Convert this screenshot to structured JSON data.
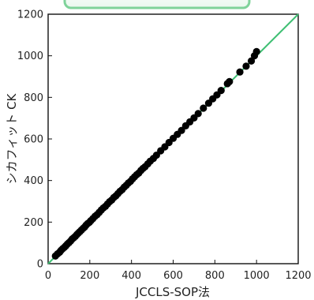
{
  "chart_data": {
    "type": "scatter",
    "title": "",
    "xlabel": "JCCLS-SOP法",
    "ylabel": "シカフィット CK",
    "xlim": [
      0,
      1200
    ],
    "ylim": [
      0,
      1200
    ],
    "x_ticks": [
      "0",
      "200",
      "400",
      "600",
      "800",
      "1000",
      "1200"
    ],
    "y_ticks": [
      "0",
      "200",
      "400",
      "600",
      "800",
      "1000",
      "1200"
    ],
    "grid": false,
    "legend": "none",
    "colors": {
      "points": "#000000",
      "reference_line": "#3fbf73",
      "top_decoration": "#7fd39a"
    },
    "reference_line": {
      "x": [
        0,
        1200
      ],
      "y": [
        0,
        1200
      ]
    },
    "series": [
      {
        "x": [
          35,
          45,
          55,
          62,
          70,
          78,
          85,
          92,
          100,
          108,
          115,
          122,
          130,
          138,
          145,
          152,
          160,
          168,
          175,
          182,
          190,
          198,
          205,
          215,
          225,
          235,
          245,
          255,
          265,
          275,
          285,
          295,
          305,
          315,
          325,
          335,
          345,
          355,
          365,
          375,
          385,
          395,
          405,
          415,
          425,
          435,
          445,
          455,
          465,
          478,
          490,
          505,
          520,
          540,
          560,
          580,
          600,
          620,
          640,
          660,
          680,
          700,
          720,
          745,
          770,
          790,
          810,
          830,
          860,
          870,
          920,
          950,
          975,
          990,
          1000
        ],
        "y": [
          37,
          47,
          55,
          64,
          72,
          79,
          86,
          94,
          101,
          109,
          118,
          124,
          131,
          140,
          147,
          154,
          162,
          170,
          176,
          185,
          193,
          199,
          207,
          217,
          228,
          236,
          247,
          258,
          268,
          276,
          287,
          298,
          306,
          318,
          326,
          337,
          348,
          356,
          368,
          377,
          388,
          396,
          408,
          418,
          428,
          436,
          448,
          458,
          466,
          480,
          493,
          506,
          522,
          543,
          562,
          583,
          603,
          622,
          641,
          663,
          682,
          701,
          722,
          748,
          772,
          793,
          812,
          833,
          866,
          876,
          922,
          950,
          975,
          1000,
          1020
        ]
      }
    ]
  }
}
